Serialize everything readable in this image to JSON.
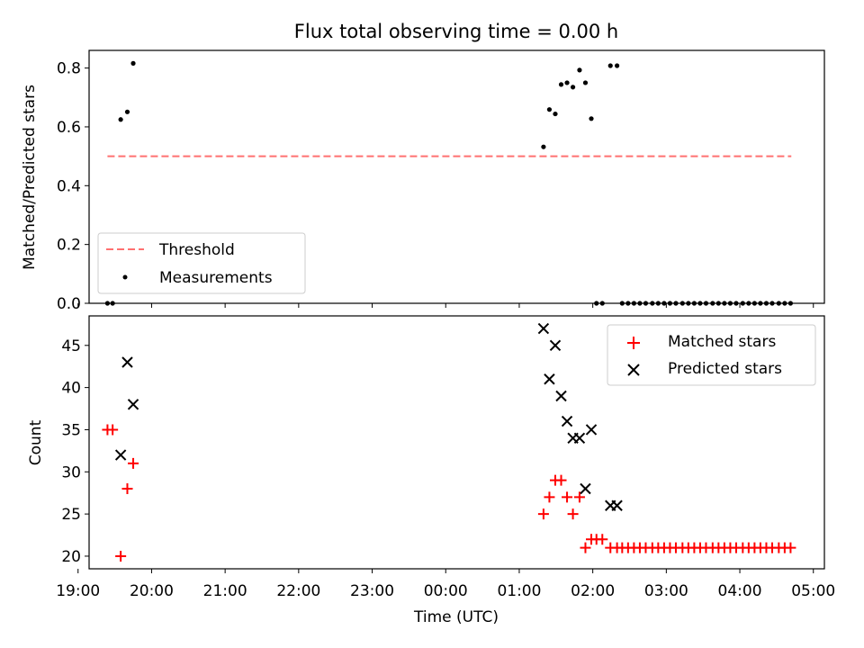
{
  "chart_data": [
    {
      "type": "scatter",
      "title": "Flux total observing time = 0.00 h",
      "xlabel": "",
      "ylabel": "Matched/Predicted stars",
      "xlim": [
        19.15,
        5.15
      ],
      "ylim": [
        0.0,
        0.86
      ],
      "x_tick_labels": [
        "19:00",
        "20:00",
        "21:00",
        "22:00",
        "23:00",
        "00:00",
        "01:00",
        "02:00",
        "03:00",
        "04:00",
        "05:00"
      ],
      "y_ticks": [
        0.0,
        0.2,
        0.4,
        0.6,
        0.8
      ],
      "y_tick_labels": [
        "0.0",
        "0.2",
        "0.4",
        "0.6",
        "0.8"
      ],
      "legend_position": "lower-left",
      "series": [
        {
          "name": "Threshold",
          "kind": "dashed-line",
          "color": "#ff7070",
          "x": [
            19.4,
            4.7
          ],
          "y": [
            0.5,
            0.5
          ]
        },
        {
          "name": "Measurements",
          "kind": "dot",
          "color": "#000000",
          "x": [
            19.4,
            19.47,
            19.58,
            19.67,
            19.75,
            1.33,
            1.41,
            1.49,
            1.57,
            1.65,
            1.73,
            1.82,
            1.9,
            1.98,
            2.05,
            2.13,
            2.24,
            2.33,
            2.4,
            2.48,
            2.56,
            2.64,
            2.72,
            2.81,
            2.89,
            2.97,
            3.05,
            3.13,
            3.22,
            3.3,
            3.38,
            3.46,
            3.54,
            3.63,
            3.71,
            3.79,
            3.87,
            3.95,
            4.04,
            4.12,
            4.2,
            4.28,
            4.36,
            4.44,
            4.53,
            4.61,
            4.69
          ],
          "y": [
            0.0,
            0.0,
            0.625,
            0.651,
            0.816,
            0.532,
            0.659,
            0.644,
            0.744,
            0.75,
            0.735,
            0.793,
            0.75,
            0.628,
            0.0,
            0.0,
            0.808,
            0.808,
            0.0,
            0.0,
            0.0,
            0.0,
            0.0,
            0.0,
            0.0,
            0.0,
            0.0,
            0.0,
            0.0,
            0.0,
            0.0,
            0.0,
            0.0,
            0.0,
            0.0,
            0.0,
            0.0,
            0.0,
            0.0,
            0.0,
            0.0,
            0.0,
            0.0,
            0.0,
            0.0,
            0.0,
            0.0
          ]
        }
      ]
    },
    {
      "type": "scatter",
      "title": "",
      "xlabel": "Time (UTC)",
      "ylabel": "Count",
      "xlim": [
        19.15,
        5.15
      ],
      "ylim": [
        18.5,
        48.5
      ],
      "x_tick_labels": [
        "19:00",
        "20:00",
        "21:00",
        "22:00",
        "23:00",
        "00:00",
        "01:00",
        "02:00",
        "03:00",
        "04:00",
        "05:00"
      ],
      "y_ticks": [
        20,
        25,
        30,
        35,
        40,
        45
      ],
      "y_tick_labels": [
        "20",
        "25",
        "30",
        "35",
        "40",
        "45"
      ],
      "legend_position": "top-right",
      "series": [
        {
          "name": "Matched stars",
          "marker": "plus",
          "color": "#ff0000",
          "x": [
            19.4,
            19.47,
            19.58,
            19.67,
            19.75,
            1.33,
            1.41,
            1.49,
            1.57,
            1.65,
            1.73,
            1.82,
            1.9,
            1.98,
            2.05,
            2.13,
            2.24,
            2.33,
            2.4,
            2.48,
            2.56,
            2.64,
            2.72,
            2.81,
            2.89,
            2.97,
            3.05,
            3.13,
            3.22,
            3.3,
            3.38,
            3.46,
            3.54,
            3.63,
            3.71,
            3.79,
            3.87,
            3.95,
            4.04,
            4.12,
            4.2,
            4.28,
            4.36,
            4.44,
            4.53,
            4.61,
            4.69
          ],
          "y": [
            35,
            35,
            20,
            28,
            31,
            25,
            27,
            29,
            29,
            27,
            25,
            27,
            21,
            22,
            22,
            22,
            21,
            21,
            21,
            21,
            21,
            21,
            21,
            21,
            21,
            21,
            21,
            21,
            21,
            21,
            21,
            21,
            21,
            21,
            21,
            21,
            21,
            21,
            21,
            21,
            21,
            21,
            21,
            21,
            21,
            21,
            21
          ]
        },
        {
          "name": "Predicted stars",
          "marker": "cross",
          "color": "#000000",
          "x": [
            19.58,
            19.67,
            19.75,
            1.33,
            1.41,
            1.49,
            1.57,
            1.65,
            1.73,
            1.82,
            1.9,
            1.98,
            2.24,
            2.33
          ],
          "y": [
            32,
            43,
            38,
            47,
            41,
            45,
            39,
            36,
            34,
            34,
            28,
            35,
            26,
            26
          ]
        }
      ]
    }
  ]
}
